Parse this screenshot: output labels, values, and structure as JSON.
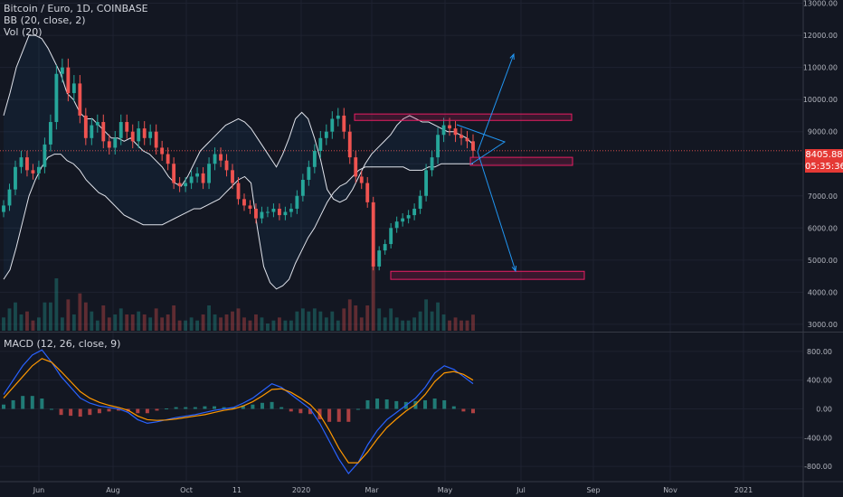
{
  "legend": {
    "symbol": "Bitcoin / Euro, 1D, COINBASE",
    "bb": "BB (20, close, 2)",
    "vol": "Vol (20)",
    "macd": "MACD (12, 26, close, 9)"
  },
  "price_tag": {
    "value": "8405.88",
    "countdown": "05:35:36",
    "color": "#e53935"
  },
  "colors": {
    "background": "#131722",
    "up": "#26a69a",
    "down": "#ef5350",
    "band": "#e0e3eb",
    "macd": "#2962ff",
    "signal": "#ff9800",
    "arrow": "#2196f3",
    "zone": "#e91e63"
  },
  "chart_data": [
    {
      "type": "candlestick",
      "title": "",
      "x_tick_labels": [
        "Jun",
        "Aug",
        "Oct",
        "11",
        "2020",
        "Mar",
        "May",
        "Jul",
        "Sep",
        "Nov",
        "2021"
      ],
      "y_tick_labels": [
        "13000.00",
        "12000.00",
        "11000.00",
        "10000.00",
        "9000.00",
        "8000.00",
        "7000.00",
        "6000.00",
        "5000.00",
        "4000.00",
        "3000.00"
      ],
      "ylim": [
        2800,
        13100
      ],
      "current_price": 8405.88,
      "closes": [
        6700,
        7200,
        7900,
        8200,
        7800,
        7700,
        7900,
        8600,
        9300,
        10800,
        11000,
        10200,
        10500,
        9500,
        8800,
        9200,
        9300,
        8700,
        8500,
        8800,
        9300,
        9000,
        8700,
        9100,
        8800,
        9000,
        8500,
        8300,
        8000,
        7400,
        7300,
        7400,
        7600,
        7700,
        7400,
        8000,
        8300,
        8100,
        7800,
        7400,
        6900,
        6700,
        6600,
        6300,
        6500,
        6500,
        6600,
        6400,
        6500,
        6600,
        7000,
        7500,
        7900,
        8400,
        8800,
        9000,
        9400,
        9500,
        9000,
        8200,
        7600,
        7400,
        6800,
        4800,
        5300,
        5500,
        6000,
        6200,
        6300,
        6400,
        6600,
        7000,
        7800,
        8200,
        8900,
        9200,
        9100,
        8900,
        8800,
        8700,
        8406
      ],
      "bb_upper": [
        9500,
        10200,
        11000,
        11500,
        12000,
        12000,
        11900,
        11600,
        11200,
        10800,
        10200,
        10000,
        9600,
        9400,
        9400,
        9200,
        9000,
        8800,
        8800,
        8700,
        8800,
        8600,
        8400,
        8300,
        8100,
        7900,
        7600,
        7400,
        7300,
        7600,
        8000,
        8400,
        8600,
        8800,
        9000,
        9200,
        9300,
        9400,
        9300,
        9100,
        8800,
        8500,
        8200,
        7900,
        8300,
        8800,
        9400,
        9600,
        9400,
        8800,
        8100,
        7200,
        6900,
        6800,
        6900,
        7200,
        7600,
        8000,
        8300,
        8500,
        8700,
        8900,
        9200,
        9400,
        9500,
        9400,
        9300,
        9300,
        9200,
        9100,
        9000,
        9000,
        8900,
        8800,
        8600
      ],
      "bb_lower": [
        4400,
        4700,
        5400,
        6200,
        7000,
        7500,
        7900,
        8200,
        8300,
        8300,
        8100,
        8000,
        7800,
        7500,
        7300,
        7100,
        7000,
        6800,
        6600,
        6400,
        6300,
        6200,
        6100,
        6100,
        6100,
        6100,
        6200,
        6300,
        6400,
        6500,
        6600,
        6600,
        6700,
        6800,
        6900,
        7100,
        7300,
        7500,
        7600,
        7400,
        6000,
        4800,
        4300,
        4100,
        4200,
        4400,
        4900,
        5300,
        5700,
        6000,
        6400,
        6800,
        7100,
        7300,
        7400,
        7600,
        7800,
        7900,
        7900,
        7900,
        7900,
        7900,
        7900,
        7900,
        7800,
        7800,
        7800,
        7900,
        7900,
        8000,
        8000,
        8000,
        8000,
        8000,
        8000
      ],
      "zones": [
        {
          "price_top": 9550,
          "price_bottom": 9350
        },
        {
          "price_top": 8200,
          "price_bottom": 7950
        },
        {
          "price_top": 4650,
          "price_bottom": 4400
        }
      ]
    },
    {
      "type": "line",
      "title": "",
      "y_tick_labels": [
        "800.00",
        "400.00",
        "0.00",
        "-400.00",
        "-800.00"
      ],
      "ylim": [
        -1000,
        1050
      ],
      "series": [
        {
          "values": [
            200,
            400,
            600,
            750,
            820,
            650,
            450,
            300,
            150,
            80,
            40,
            20,
            0,
            -50,
            -150,
            -200,
            -180,
            -150,
            -120,
            -100,
            -80,
            -50,
            -20,
            0,
            20,
            80,
            150,
            250,
            350,
            300,
            200,
            100,
            0,
            -200,
            -450,
            -700,
            -900,
            -750,
            -500,
            -300,
            -150,
            -50,
            50,
            150,
            300,
            500,
            600,
            550,
            450,
            350
          ]
        },
        {
          "values": [
            150,
            300,
            450,
            600,
            700,
            650,
            520,
            380,
            240,
            150,
            90,
            50,
            20,
            -20,
            -100,
            -150,
            -160,
            -155,
            -140,
            -120,
            -100,
            -80,
            -50,
            -20,
            0,
            40,
            100,
            180,
            270,
            280,
            230,
            150,
            60,
            -80,
            -300,
            -550,
            -750,
            -750,
            -600,
            -420,
            -260,
            -140,
            -30,
            60,
            200,
            380,
            500,
            520,
            480,
            400
          ]
        }
      ]
    }
  ]
}
